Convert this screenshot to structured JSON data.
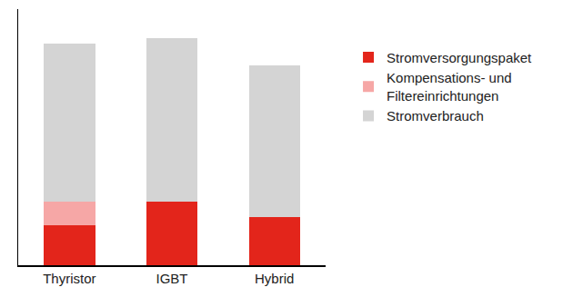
{
  "chart_data": {
    "type": "bar",
    "stacked": true,
    "categories": [
      "Thyristor",
      "IGBT",
      "Hybrid"
    ],
    "series": [
      {
        "name": "Stromversorgungspaket",
        "color": "#e3251b",
        "values": [
          44,
          70,
          53
        ]
      },
      {
        "name": "Kompensations- und\nFiltereinrichtungen",
        "color": "#f6a7a6",
        "values": [
          26,
          0,
          0
        ]
      },
      {
        "name": "Stromverbrauch",
        "color": "#d4d4d4",
        "values": [
          174,
          180,
          167
        ]
      }
    ],
    "ylim": [
      0,
      282
    ],
    "yticks": [],
    "grid": false,
    "legend": "right",
    "tick_labels": "x"
  }
}
